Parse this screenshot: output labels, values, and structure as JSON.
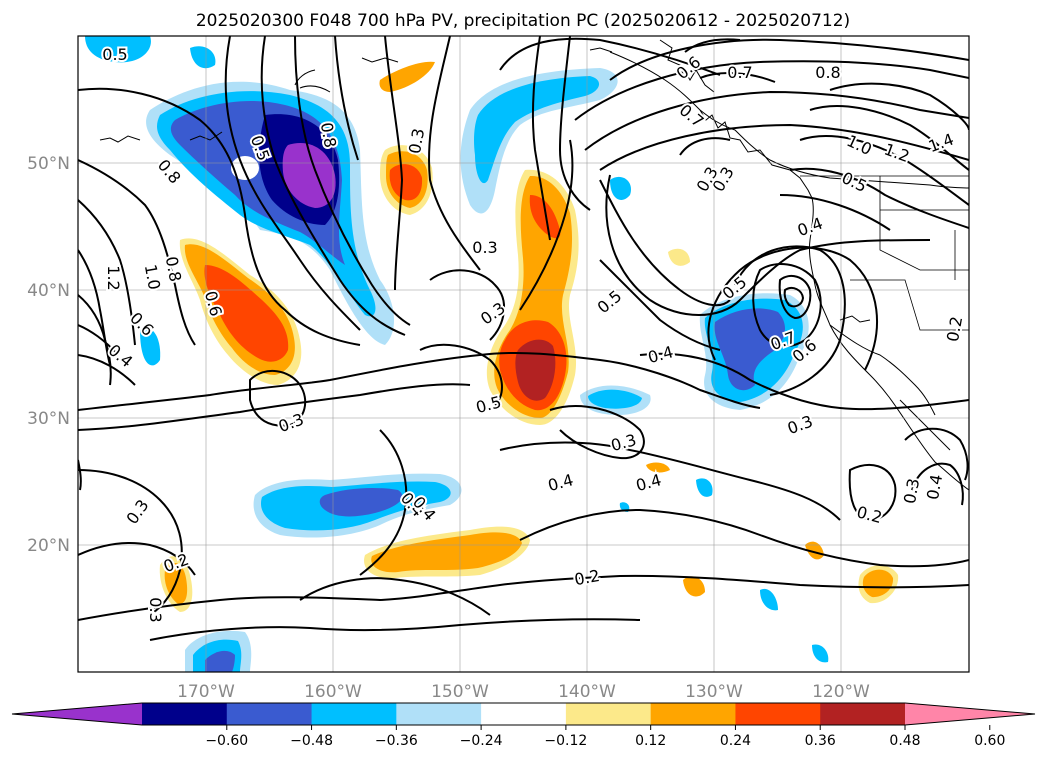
{
  "title": "2025020300 F048 700 hPa PV, precipitation PC (2025020612 - 2025020712)",
  "map": {
    "lon_range": [
      -180,
      -110
    ],
    "lat_range": [
      10,
      60
    ],
    "gridlines": true,
    "lon_ticks": [
      "170°W",
      "160°W",
      "150°W",
      "140°W",
      "130°W",
      "120°W"
    ],
    "lat_ticks": [
      "50°N",
      "40°N",
      "30°N",
      "20°N"
    ]
  },
  "colorbar": {
    "ticks": [
      "−0.60",
      "−0.48",
      "−0.36",
      "−0.24",
      "−0.12",
      "0.12",
      "0.24",
      "0.36",
      "0.48",
      "0.60"
    ],
    "colors": [
      "#9932cc",
      "#00008b",
      "#3a5bd0",
      "#00bfff",
      "#b0e0f8",
      "#ffffff",
      "#fce98a",
      "#ffa500",
      "#ff4500",
      "#b22222",
      "#ff85a8"
    ],
    "extend": "both"
  },
  "contour_labels": [
    "0.5",
    "0.8",
    "0.6",
    "0.5",
    "0.3",
    "0.6",
    "0.7",
    "0.8",
    "1.0",
    "1.2",
    "1.4",
    "0.7",
    "0.3",
    "0.5",
    "0.4",
    "0.3",
    "0.5",
    "1.2",
    "1.0",
    "0.8",
    "0.6",
    "0.4",
    "0.3",
    "0.5",
    "0.3",
    "0.4",
    "0.5",
    "0.7",
    "0.6",
    "0.3",
    "0.3",
    "0.4",
    "0.4",
    "0.4",
    "0.3",
    "0.2",
    "0.2",
    "0.3",
    "0.2",
    "0.3",
    "0.4",
    "0.2",
    "0.8",
    "0.3",
    "0.4"
  ]
}
